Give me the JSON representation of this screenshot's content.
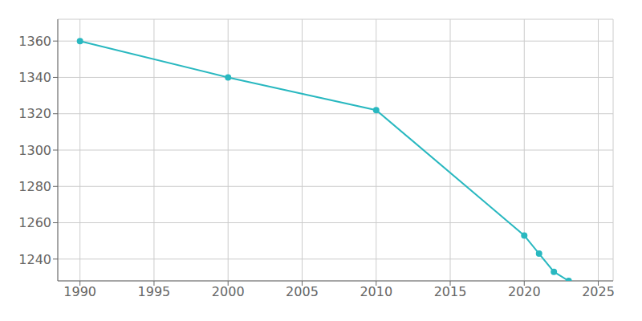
{
  "chart_data": {
    "type": "line",
    "x": [
      1990,
      2000,
      2010,
      2020,
      2021,
      2022,
      2023
    ],
    "values": [
      1360,
      1340,
      1322,
      1253,
      1243,
      1233,
      1228
    ],
    "color": "#29B8C0",
    "marker": "o",
    "xlim": [
      1988.5,
      2026
    ],
    "ylim": [
      1228,
      1372
    ],
    "xticks": [
      1990,
      1995,
      2000,
      2005,
      2010,
      2015,
      2020,
      2025
    ],
    "yticks": [
      1240,
      1260,
      1280,
      1300,
      1320,
      1340,
      1360
    ],
    "grid": true
  }
}
